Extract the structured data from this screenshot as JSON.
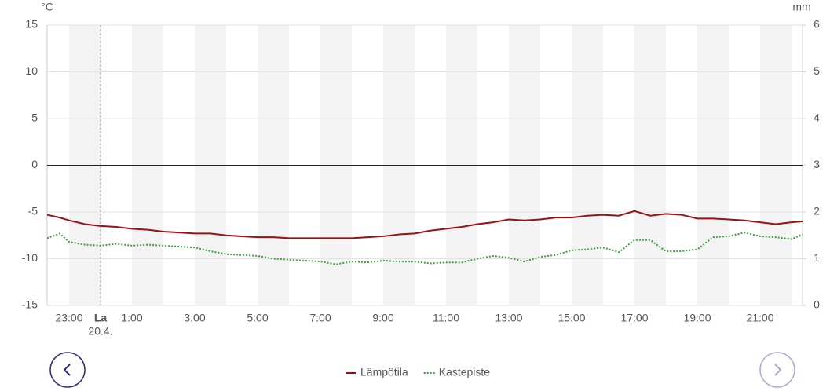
{
  "chart_data": {
    "type": "line",
    "y_unit": "°C",
    "y2_unit": "mm",
    "x": [
      22.3,
      22.7,
      23,
      23.5,
      24,
      24.5,
      25,
      25.5,
      26,
      26.5,
      27,
      27.5,
      28,
      28.5,
      29,
      29.5,
      30,
      30.5,
      31,
      31.5,
      32,
      32.5,
      33,
      33.5,
      34,
      34.5,
      35,
      35.5,
      36,
      36.5,
      37,
      37.5,
      38,
      38.5,
      39,
      39.5,
      40,
      40.5,
      41,
      41.5,
      42,
      42.5,
      43,
      43.5,
      44,
      44.5,
      45,
      45.5,
      46,
      46.35
    ],
    "series": [
      {
        "name": "Lämpötila",
        "color": "#9b1010",
        "style": "solid",
        "values": [
          -5.3,
          -5.6,
          -5.9,
          -6.3,
          -6.5,
          -6.6,
          -6.8,
          -6.9,
          -7.1,
          -7.2,
          -7.3,
          -7.3,
          -7.5,
          -7.6,
          -7.7,
          -7.7,
          -7.8,
          -7.8,
          -7.8,
          -7.8,
          -7.8,
          -7.7,
          -7.6,
          -7.4,
          -7.3,
          -7.0,
          -6.8,
          -6.6,
          -6.3,
          -6.1,
          -5.8,
          -5.9,
          -5.8,
          -5.6,
          -5.6,
          -5.4,
          -5.3,
          -5.4,
          -4.9,
          -5.4,
          -5.2,
          -5.3,
          -5.7,
          -5.7,
          -5.8,
          -5.9,
          -6.1,
          -6.3,
          -6.1,
          -6.0
        ]
      },
      {
        "name": "Kastepiste",
        "color": "#3aa33a",
        "style": "dotted",
        "values": [
          -7.8,
          -7.3,
          -8.2,
          -8.5,
          -8.6,
          -8.4,
          -8.6,
          -8.5,
          -8.6,
          -8.7,
          -8.8,
          -9.2,
          -9.5,
          -9.6,
          -9.7,
          -10.0,
          -10.1,
          -10.2,
          -10.3,
          -10.6,
          -10.3,
          -10.4,
          -10.2,
          -10.3,
          -10.3,
          -10.5,
          -10.4,
          -10.4,
          -10.0,
          -9.7,
          -9.9,
          -10.3,
          -9.8,
          -9.6,
          -9.1,
          -9.0,
          -8.8,
          -9.3,
          -8.0,
          -8.0,
          -9.2,
          -9.2,
          -9.0,
          -7.7,
          -7.6,
          -7.2,
          -7.6,
          -7.7,
          -7.9,
          -7.4
        ]
      }
    ],
    "xlim": [
      22.3,
      46.35
    ],
    "xticks": [
      {
        "value": 23,
        "label": "23:00"
      },
      {
        "value": 25,
        "label": "1:00"
      },
      {
        "value": 27,
        "label": "3:00"
      },
      {
        "value": 29,
        "label": "5:00"
      },
      {
        "value": 31,
        "label": "7:00"
      },
      {
        "value": 33,
        "label": "9:00"
      },
      {
        "value": 35,
        "label": "11:00"
      },
      {
        "value": 37,
        "label": "13:00"
      },
      {
        "value": 39,
        "label": "15:00"
      },
      {
        "value": 41,
        "label": "17:00"
      },
      {
        "value": 43,
        "label": "19:00"
      },
      {
        "value": 45,
        "label": "21:00"
      }
    ],
    "day_marker": {
      "x": 24,
      "label": "La",
      "sublabel": "20.4."
    },
    "ylim": [
      -15,
      15
    ],
    "yticks": [
      -15,
      -10,
      -5,
      0,
      5,
      10,
      15
    ],
    "y2lim": [
      0,
      6
    ],
    "y2ticks": [
      0,
      1,
      2,
      3,
      4,
      5,
      6
    ],
    "grid": true
  }
}
